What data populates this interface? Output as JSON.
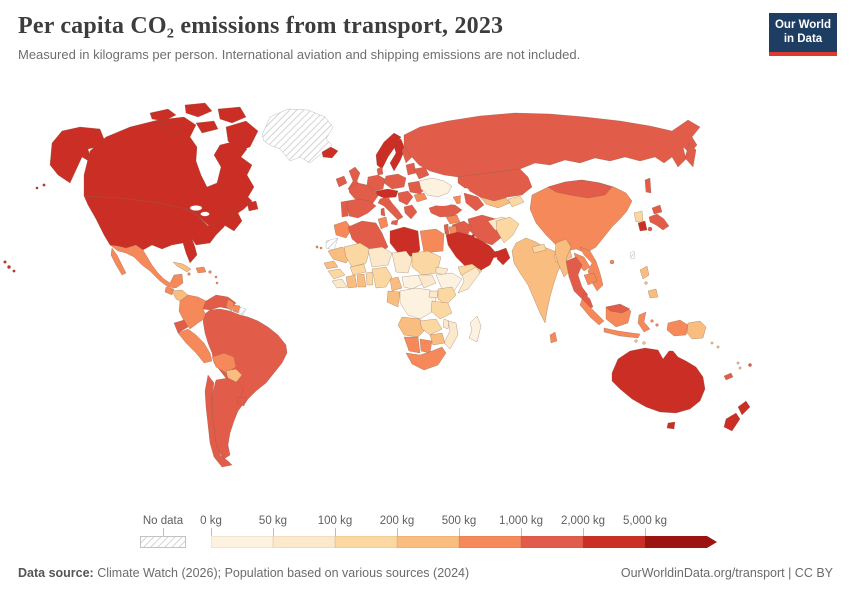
{
  "header": {
    "title": "Per capita CO₂ emissions from transport, 2023",
    "subtitle": "Measured in kilograms per person. International aviation and shipping emissions are not included.",
    "logo": {
      "line1": "Our World",
      "line2": "in Data",
      "bg_color": "#1d3d63",
      "accent_color": "#dc3a2e"
    }
  },
  "footer": {
    "source_label": "Data source:",
    "source_text": " Climate Watch (2026); Population based on various sources (2024)",
    "link_text": "OurWorldinData.org/transport | CC BY"
  },
  "chart_data": {
    "type": "choropleth",
    "title": "Per capita CO₂ emissions from transport, 2023",
    "unit": "kilograms per person",
    "legend": {
      "no_data_label": "No data",
      "edge_labels": [
        "0 kg",
        "50 kg",
        "100 kg",
        "200 kg",
        "500 kg",
        "1,000 kg",
        "2,000 kg",
        "5,000 kg"
      ],
      "band_order": [
        "b1",
        "b2",
        "b3",
        "b4",
        "b5",
        "b6",
        "b7",
        "b8"
      ],
      "band_colors": {
        "b1": "#fdf2e0",
        "b2": "#fce9cc",
        "b3": "#fbd8a2",
        "b4": "#f9bd80",
        "b5": "#f5895a",
        "b6": "#e25d49",
        "b7": "#cb2e25",
        "b8": "#9b140f"
      },
      "no_data_line_color": "#cccccc"
    },
    "regions": {
      "alaska": "b7",
      "canada": "b7",
      "usa": "b7",
      "hawaii": "b7",
      "greenland": "nodata",
      "iceland": "b7",
      "mexico": "b5",
      "guatemala": "b5",
      "honduras-nicaragua": "b4",
      "costa-rica": "b5",
      "panama": "b6",
      "cuba": "b4",
      "hispaniola": "b5",
      "jamaica": "b5",
      "puerto-rico": "b5",
      "lesser-antilles": "b5",
      "colombia": "b5",
      "venezuela": "b6",
      "guyana": "b5",
      "suriname": "b5",
      "french-guiana": "nodata",
      "ecuador": "b6",
      "peru": "b5",
      "brazil": "b6",
      "bolivia": "b5",
      "paraguay": "b4",
      "uruguay": "b6",
      "argentina": "b6",
      "chile": "b6",
      "ireland": "b6",
      "uk": "b6",
      "portugal": "b6",
      "spain": "b6",
      "france": "b6",
      "germany": "b6",
      "denmark": "b6",
      "norway": "b7",
      "sweden": "b7",
      "finland": "b6",
      "baltics": "b6",
      "poland": "b6",
      "alpine-europe": "b7",
      "italy": "b6",
      "sicily": "b6",
      "sardinia": "b6",
      "balkans": "b6",
      "greece": "b6",
      "romania": "b6",
      "bulgaria": "b5",
      "belarus": "b6",
      "ukraine": "b1",
      "turkey": "b6",
      "caucasus": "b5",
      "russia": "b6",
      "kazakhstan": "b6",
      "uzbekistan": "b4",
      "turkmenistan": "b6",
      "kyrgyzstan-tajikistan": "b3",
      "afghanistan": "b2",
      "pakistan": "b3",
      "india": "b4",
      "nepal": "b3",
      "bangladesh": "b3",
      "sri-lanka": "b5",
      "china": "b5",
      "mongolia": "b6",
      "north-korea": "b3",
      "south-korea": "b7",
      "japan": "b6",
      "taiwan": "nodata",
      "hainan": "b5",
      "myanmar": "b4",
      "thailand": "b6",
      "laos": "b5",
      "vietnam": "b5",
      "cambodia": "b5",
      "malaysia": "b6",
      "sumatra": "b5",
      "java": "b5",
      "borneo": "b5",
      "malaysian-borneo": "b6",
      "sulawesi": "b5",
      "lesser-sunda": "b4",
      "maluku": "b5",
      "papua-indonesia": "b5",
      "papua-new-guinea": "b4",
      "philippines": "b4",
      "syria": "b5",
      "iraq": "b6",
      "iran": "b6",
      "israel-lebanon": "b6",
      "jordan": "b5",
      "saudi-arabia": "b7",
      "kuwait": "b7",
      "uae-qatar": "b7",
      "oman": "b7",
      "yemen": "b3",
      "morocco": "b5",
      "canary-islands": "b5",
      "western-sahara": "nodata",
      "mauritania": "b4",
      "senegal": "b4",
      "guinea": "b3",
      "sierra-leone-liberia": "b2",
      "ivory-coast": "b4",
      "ghana": "b4",
      "togo-benin": "b3",
      "burkina-faso": "b3",
      "mali": "b3",
      "algeria": "b6",
      "tunisia": "b5",
      "libya": "b7",
      "egypt": "b5",
      "niger": "b2",
      "chad": "b2",
      "sudan": "b3",
      "eritrea": "b2",
      "ethiopia": "b1",
      "somalia": "b2",
      "nigeria": "b3",
      "cameroon": "b4",
      "central-african-republic": "b1",
      "south-sudan": "b2",
      "congo-gabon": "b4",
      "drc": "b1",
      "uganda": "b2",
      "kenya": "b3",
      "tanzania": "b3",
      "angola": "b4",
      "zambia": "b3",
      "malawi": "b2",
      "mozambique": "b2",
      "zimbabwe": "b4",
      "namibia": "b5",
      "botswana": "b5",
      "south-africa": "b5",
      "madagascar": "b1",
      "australia": "b7",
      "tasmania": "b7",
      "new-zealand": "b7",
      "fiji": "b6",
      "new-caledonia": "b6",
      "vanuatu": "b4",
      "solomon-islands": "b4"
    }
  }
}
